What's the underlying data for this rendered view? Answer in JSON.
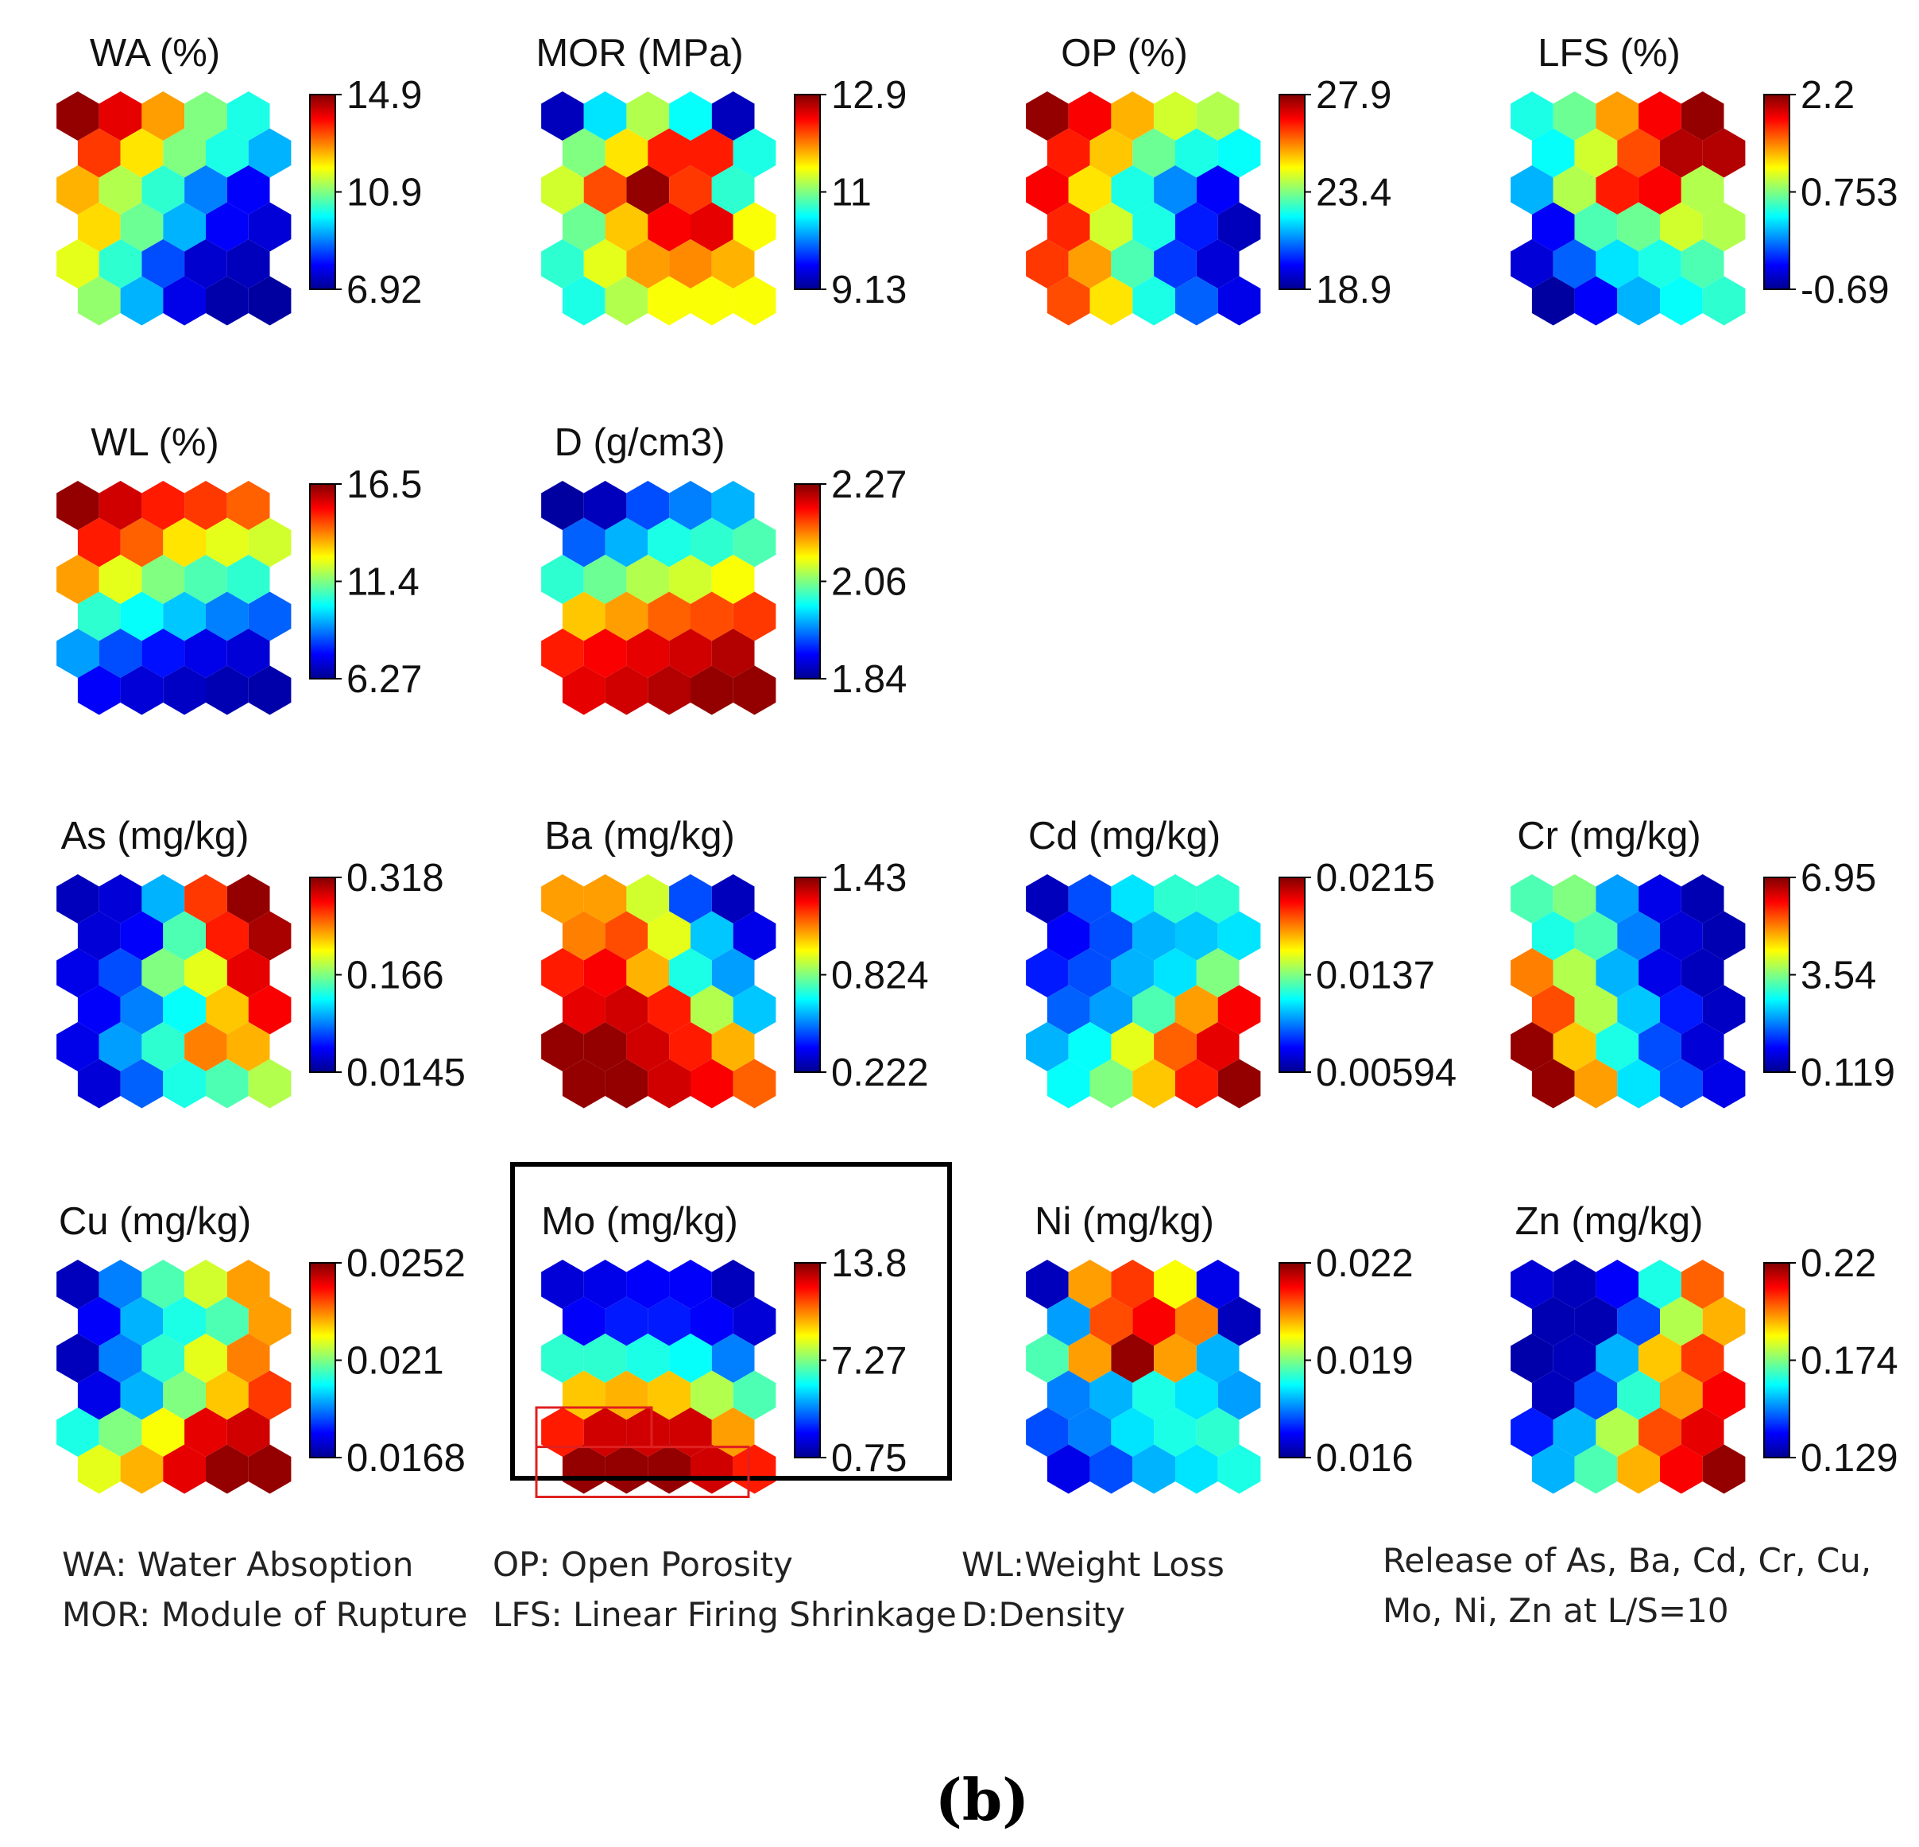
{
  "chart_data": [
    {
      "type": "heatmap",
      "title": "WA (%)",
      "colorbar": {
        "max": "14.9",
        "mid": "10.9",
        "min": "6.92"
      },
      "grid": [
        [
          0.98,
          0.9,
          0.72,
          0.5,
          0.4
        ],
        [
          0.82,
          0.65,
          0.5,
          0.4,
          0.3
        ],
        [
          0.7,
          0.55,
          0.42,
          0.25,
          0.12
        ],
        [
          0.66,
          0.48,
          0.3,
          0.12,
          0.08
        ],
        [
          0.6,
          0.42,
          0.2,
          0.07,
          0.05
        ],
        [
          0.52,
          0.3,
          0.1,
          0.03,
          0.02
        ]
      ]
    },
    {
      "type": "heatmap",
      "title": "MOR (MPa)",
      "colorbar": {
        "max": "12.9",
        "mid": "11",
        "min": "9.13"
      },
      "grid": [
        [
          0.05,
          0.35,
          0.55,
          0.38,
          0.05
        ],
        [
          0.5,
          0.65,
          0.85,
          0.85,
          0.4
        ],
        [
          0.58,
          0.8,
          0.98,
          0.82,
          0.42
        ],
        [
          0.48,
          0.68,
          0.88,
          0.9,
          0.62
        ],
        [
          0.42,
          0.6,
          0.72,
          0.74,
          0.7
        ],
        [
          0.4,
          0.55,
          0.62,
          0.62,
          0.62
        ]
      ]
    },
    {
      "type": "heatmap",
      "title": "OP (%)",
      "colorbar": {
        "max": "27.9",
        "mid": "23.4",
        "min": "18.9"
      },
      "grid": [
        [
          0.98,
          0.88,
          0.7,
          0.58,
          0.55
        ],
        [
          0.85,
          0.68,
          0.48,
          0.4,
          0.38
        ],
        [
          0.88,
          0.65,
          0.4,
          0.26,
          0.12
        ],
        [
          0.84,
          0.58,
          0.4,
          0.15,
          0.05
        ],
        [
          0.82,
          0.72,
          0.45,
          0.18,
          0.08
        ],
        [
          0.8,
          0.65,
          0.4,
          0.22,
          0.1
        ]
      ]
    },
    {
      "type": "heatmap",
      "title": "LFS (%)",
      "colorbar": {
        "max": "2.2",
        "mid": "0.753",
        "min": "-0.69"
      },
      "grid": [
        [
          0.4,
          0.48,
          0.72,
          0.88,
          0.98
        ],
        [
          0.38,
          0.58,
          0.8,
          0.95,
          0.95
        ],
        [
          0.3,
          0.55,
          0.85,
          0.88,
          0.55
        ],
        [
          0.12,
          0.45,
          0.48,
          0.58,
          0.55
        ],
        [
          0.08,
          0.22,
          0.35,
          0.4,
          0.45
        ],
        [
          0.02,
          0.12,
          0.3,
          0.38,
          0.42
        ]
      ]
    },
    {
      "type": "heatmap",
      "title": "WL (%)",
      "colorbar": {
        "max": "16.5",
        "mid": "11.4",
        "min": "6.27"
      },
      "grid": [
        [
          0.98,
          0.92,
          0.85,
          0.82,
          0.78
        ],
        [
          0.85,
          0.78,
          0.65,
          0.6,
          0.58
        ],
        [
          0.72,
          0.6,
          0.5,
          0.45,
          0.42
        ],
        [
          0.42,
          0.38,
          0.32,
          0.25,
          0.22
        ],
        [
          0.28,
          0.2,
          0.14,
          0.1,
          0.08
        ],
        [
          0.12,
          0.08,
          0.06,
          0.04,
          0.03
        ]
      ]
    },
    {
      "type": "heatmap",
      "title": "D (g/cm3)",
      "colorbar": {
        "max": "2.27",
        "mid": "2.06",
        "min": "1.84"
      },
      "grid": [
        [
          0.02,
          0.05,
          0.2,
          0.25,
          0.3
        ],
        [
          0.22,
          0.3,
          0.4,
          0.42,
          0.45
        ],
        [
          0.42,
          0.48,
          0.55,
          0.58,
          0.62
        ],
        [
          0.68,
          0.72,
          0.78,
          0.8,
          0.82
        ],
        [
          0.85,
          0.88,
          0.9,
          0.92,
          0.95
        ],
        [
          0.9,
          0.92,
          0.95,
          0.98,
          0.98
        ]
      ]
    },
    {
      "type": "heatmap",
      "title": "As (mg/kg)",
      "colorbar": {
        "max": "0.318",
        "mid": "0.166",
        "min": "0.0145"
      },
      "grid": [
        [
          0.05,
          0.08,
          0.3,
          0.82,
          0.98
        ],
        [
          0.08,
          0.12,
          0.45,
          0.85,
          0.96
        ],
        [
          0.1,
          0.2,
          0.5,
          0.6,
          0.9
        ],
        [
          0.12,
          0.25,
          0.38,
          0.68,
          0.88
        ],
        [
          0.1,
          0.28,
          0.42,
          0.75,
          0.7
        ],
        [
          0.08,
          0.22,
          0.4,
          0.45,
          0.55
        ]
      ]
    },
    {
      "type": "heatmap",
      "title": "Ba (mg/kg)",
      "colorbar": {
        "max": "1.43",
        "mid": "0.824",
        "min": "0.222"
      },
      "grid": [
        [
          0.72,
          0.72,
          0.58,
          0.2,
          0.05
        ],
        [
          0.75,
          0.8,
          0.6,
          0.32,
          0.1
        ],
        [
          0.85,
          0.88,
          0.7,
          0.4,
          0.28
        ],
        [
          0.9,
          0.92,
          0.85,
          0.55,
          0.32
        ],
        [
          0.98,
          0.98,
          0.92,
          0.85,
          0.7
        ],
        [
          0.98,
          0.98,
          0.92,
          0.88,
          0.78
        ]
      ]
    },
    {
      "type": "heatmap",
      "title": "Cd (mg/kg)",
      "colorbar": {
        "max": "0.0215",
        "mid": "0.0137",
        "min": "0.00594"
      },
      "grid": [
        [
          0.05,
          0.2,
          0.35,
          0.42,
          0.42
        ],
        [
          0.12,
          0.2,
          0.3,
          0.32,
          0.35
        ],
        [
          0.15,
          0.2,
          0.3,
          0.35,
          0.5
        ],
        [
          0.22,
          0.28,
          0.45,
          0.72,
          0.88
        ],
        [
          0.3,
          0.38,
          0.6,
          0.78,
          0.9
        ],
        [
          0.38,
          0.5,
          0.68,
          0.85,
          0.98
        ]
      ]
    },
    {
      "type": "heatmap",
      "title": "Cr (mg/kg)",
      "colorbar": {
        "max": "6.95",
        "mid": "3.54",
        "min": "0.119"
      },
      "grid": [
        [
          0.45,
          0.5,
          0.28,
          0.1,
          0.04
        ],
        [
          0.4,
          0.45,
          0.25,
          0.08,
          0.04
        ],
        [
          0.75,
          0.55,
          0.3,
          0.1,
          0.05
        ],
        [
          0.8,
          0.55,
          0.32,
          0.15,
          0.06
        ],
        [
          0.98,
          0.68,
          0.4,
          0.2,
          0.08
        ],
        [
          0.98,
          0.72,
          0.35,
          0.2,
          0.1
        ]
      ]
    },
    {
      "type": "heatmap",
      "title": "Cu (mg/kg)",
      "colorbar": {
        "max": "0.0252",
        "mid": "0.021",
        "min": "0.0168"
      },
      "grid": [
        [
          0.05,
          0.25,
          0.45,
          0.58,
          0.72
        ],
        [
          0.12,
          0.3,
          0.4,
          0.45,
          0.72
        ],
        [
          0.05,
          0.25,
          0.42,
          0.6,
          0.75
        ],
        [
          0.1,
          0.3,
          0.5,
          0.68,
          0.82
        ],
        [
          0.4,
          0.5,
          0.62,
          0.9,
          0.92
        ],
        [
          0.6,
          0.7,
          0.9,
          0.98,
          0.98
        ]
      ]
    },
    {
      "type": "heatmap",
      "title": "Mo (mg/kg)",
      "colorbar": {
        "max": "13.8",
        "mid": "7.27",
        "min": "0.75"
      },
      "grid": [
        [
          0.08,
          0.1,
          0.12,
          0.12,
          0.05
        ],
        [
          0.12,
          0.15,
          0.15,
          0.12,
          0.08
        ],
        [
          0.42,
          0.42,
          0.4,
          0.38,
          0.25
        ],
        [
          0.68,
          0.7,
          0.68,
          0.55,
          0.45
        ],
        [
          0.85,
          0.92,
          0.92,
          0.92,
          0.72
        ],
        [
          0.98,
          0.98,
          0.98,
          0.92,
          0.85
        ]
      ]
    },
    {
      "type": "heatmap",
      "title": "Ni (mg/kg)",
      "colorbar": {
        "max": "0.022",
        "mid": "0.019",
        "min": "0.016"
      },
      "grid": [
        [
          0.05,
          0.72,
          0.82,
          0.62,
          0.1
        ],
        [
          0.28,
          0.8,
          0.88,
          0.75,
          0.05
        ],
        [
          0.45,
          0.72,
          0.98,
          0.72,
          0.3
        ],
        [
          0.25,
          0.3,
          0.4,
          0.35,
          0.28
        ],
        [
          0.2,
          0.25,
          0.35,
          0.4,
          0.42
        ],
        [
          0.1,
          0.2,
          0.3,
          0.35,
          0.4
        ]
      ]
    },
    {
      "type": "heatmap",
      "title": "Zn (mg/kg)",
      "colorbar": {
        "max": "0.22",
        "mid": "0.174",
        "min": "0.129"
      },
      "grid": [
        [
          0.08,
          0.05,
          0.12,
          0.4,
          0.78
        ],
        [
          0.04,
          0.04,
          0.2,
          0.55,
          0.7
        ],
        [
          0.03,
          0.05,
          0.3,
          0.68,
          0.82
        ],
        [
          0.05,
          0.2,
          0.42,
          0.72,
          0.88
        ],
        [
          0.15,
          0.3,
          0.55,
          0.8,
          0.9
        ],
        [
          0.3,
          0.45,
          0.7,
          0.88,
          0.98
        ]
      ]
    }
  ],
  "legends": [
    [
      "WA: Water Absoption",
      "MOR: Module of Rupture"
    ],
    [
      "OP: Open Porosity",
      "LFS: Linear Firing Shrinkage"
    ],
    [
      "WL:Weight Loss",
      "D:Density"
    ],
    [
      "Release of As, Ba, Cd, Cr, Cu,",
      "Mo, Ni, Zn at L/S=10"
    ]
  ],
  "caption": "(b)",
  "highlight": {
    "panel_index": 11,
    "box_color": "#000000",
    "region_color": "#e02020"
  }
}
